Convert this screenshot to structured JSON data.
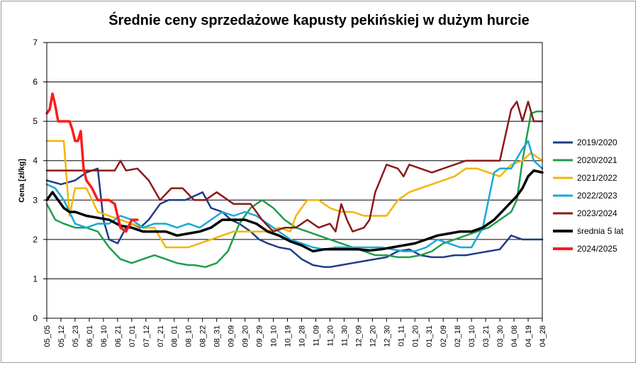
{
  "chart_data": {
    "type": "line",
    "title": "Średnie ceny sprzedażowe kapusty pekińskiej w dużym hurcie",
    "ylabel": "Cena [zł/kg]",
    "xlabel": "",
    "ylim": [
      0,
      7
    ],
    "yticks": [
      0,
      1,
      2,
      3,
      4,
      5,
      6,
      7
    ],
    "grid": "horizontal",
    "legend_position": "right",
    "x_tick_labels": [
      "05_05",
      "05_12",
      "05_23",
      "06_01",
      "06_10",
      "06_21",
      "07_01",
      "07_12",
      "07_21",
      "08_01",
      "08_10",
      "08_22",
      "08_31",
      "09_09",
      "09_20",
      "09_29",
      "10_10",
      "10_19",
      "10_28",
      "11_09",
      "11_20",
      "11_30",
      "12_09",
      "12_20",
      "12_30",
      "01_11",
      "01_20",
      "01_31",
      "02_09",
      "02_18",
      "03_10",
      "03_21",
      "03_30",
      "04_08",
      "04_19",
      "04_28"
    ],
    "x_range": [
      0,
      175
    ],
    "series": [
      {
        "name": "2019/2020",
        "color": "#1f3c88",
        "x": [
          0,
          5,
          10,
          14,
          18,
          20,
          22,
          25,
          28,
          30,
          33,
          36,
          40,
          43,
          46,
          49,
          52,
          55,
          58,
          62,
          65,
          68,
          72,
          75,
          78,
          82,
          86,
          90,
          94,
          98,
          100,
          104,
          108,
          112,
          116,
          120,
          124,
          128,
          132,
          136,
          140,
          144,
          148,
          152,
          156,
          160,
          164,
          168,
          172,
          175
        ],
        "y": [
          3.5,
          3.4,
          3.5,
          3.7,
          3.8,
          2.5,
          2.0,
          1.9,
          2.3,
          2.4,
          2.3,
          2.5,
          2.9,
          3.0,
          3.0,
          3.0,
          3.1,
          3.2,
          2.8,
          2.7,
          2.5,
          2.4,
          2.2,
          2.0,
          1.9,
          1.8,
          1.75,
          1.5,
          1.35,
          1.3,
          1.3,
          1.35,
          1.4,
          1.45,
          1.5,
          1.55,
          1.7,
          1.75,
          1.6,
          1.55,
          1.55,
          1.6,
          1.6,
          1.65,
          1.7,
          1.75,
          2.1,
          2.0,
          2.0,
          2.0
        ]
      },
      {
        "name": "2020/2021",
        "color": "#1e9e4a",
        "x": [
          0,
          3,
          6,
          10,
          14,
          18,
          22,
          26,
          30,
          34,
          38,
          42,
          46,
          50,
          52,
          56,
          60,
          64,
          68,
          72,
          76,
          80,
          84,
          88,
          92,
          96,
          100,
          104,
          108,
          112,
          116,
          120,
          124,
          128,
          132,
          136,
          140,
          144,
          148,
          152,
          156,
          160,
          164,
          166,
          168,
          171,
          173,
          175
        ],
        "y": [
          2.9,
          2.5,
          2.4,
          2.3,
          2.3,
          2.2,
          1.8,
          1.5,
          1.4,
          1.5,
          1.6,
          1.5,
          1.4,
          1.35,
          1.35,
          1.3,
          1.4,
          1.7,
          2.4,
          2.8,
          3.0,
          2.8,
          2.5,
          2.3,
          2.2,
          2.1,
          2.0,
          1.9,
          1.8,
          1.7,
          1.6,
          1.6,
          1.55,
          1.55,
          1.6,
          1.7,
          1.9,
          2.0,
          2.1,
          2.2,
          2.3,
          2.5,
          2.7,
          3.0,
          4.0,
          5.2,
          5.25,
          5.25
        ]
      },
      {
        "name": "2021/2022",
        "color": "#f5b400",
        "x": [
          0,
          3,
          6,
          8,
          10,
          14,
          18,
          22,
          26,
          30,
          34,
          38,
          42,
          46,
          50,
          54,
          58,
          62,
          66,
          70,
          74,
          78,
          82,
          86,
          88,
          92,
          96,
          100,
          104,
          108,
          112,
          116,
          120,
          124,
          128,
          132,
          136,
          140,
          144,
          148,
          152,
          156,
          160,
          164,
          168,
          171,
          173,
          175
        ],
        "y": [
          4.5,
          4.5,
          4.5,
          2.6,
          3.3,
          3.3,
          2.7,
          2.6,
          2.5,
          2.4,
          2.3,
          2.3,
          1.8,
          1.8,
          1.8,
          1.9,
          2.0,
          2.1,
          2.2,
          2.2,
          2.2,
          2.2,
          2.3,
          2.2,
          2.6,
          3.0,
          3.0,
          2.8,
          2.7,
          2.7,
          2.6,
          2.6,
          2.6,
          3.0,
          3.2,
          3.3,
          3.4,
          3.5,
          3.6,
          3.8,
          3.8,
          3.7,
          3.6,
          3.9,
          4.0,
          4.2,
          4.1,
          4.0
        ]
      },
      {
        "name": "2022/2023",
        "color": "#17a8d8",
        "x": [
          0,
          3,
          6,
          10,
          14,
          18,
          22,
          26,
          30,
          34,
          38,
          42,
          46,
          50,
          54,
          58,
          62,
          66,
          70,
          74,
          78,
          82,
          86,
          90,
          94,
          98,
          102,
          106,
          110,
          114,
          118,
          122,
          126,
          130,
          134,
          138,
          142,
          146,
          150,
          154,
          156,
          158,
          160,
          164,
          168,
          170,
          172,
          175
        ],
        "y": [
          3.4,
          3.3,
          3.0,
          2.4,
          2.3,
          2.4,
          2.4,
          2.6,
          2.5,
          2.3,
          2.4,
          2.4,
          2.3,
          2.4,
          2.3,
          2.5,
          2.7,
          2.6,
          2.7,
          2.6,
          2.4,
          2.2,
          2.0,
          1.9,
          1.8,
          1.75,
          1.8,
          1.8,
          1.8,
          1.8,
          1.8,
          1.75,
          1.7,
          1.7,
          1.8,
          2.0,
          1.9,
          1.8,
          1.8,
          2.3,
          3.0,
          3.7,
          3.8,
          3.8,
          4.3,
          4.5,
          4.0,
          3.8
        ]
      },
      {
        "name": "2023/2024",
        "color": "#8b1a1a",
        "x": [
          0,
          4,
          8,
          12,
          16,
          20,
          24,
          26,
          28,
          32,
          36,
          40,
          44,
          48,
          52,
          56,
          60,
          62,
          64,
          66,
          68,
          72,
          76,
          80,
          84,
          88,
          92,
          96,
          100,
          102,
          104,
          106,
          108,
          112,
          114,
          116,
          120,
          124,
          126,
          128,
          132,
          136,
          140,
          144,
          148,
          152,
          156,
          160,
          164,
          166,
          168,
          170,
          172,
          175
        ],
        "y": [
          3.75,
          3.75,
          3.75,
          3.75,
          3.75,
          3.75,
          3.75,
          4.0,
          3.75,
          3.8,
          3.5,
          3.0,
          3.3,
          3.3,
          3.0,
          3.0,
          3.2,
          3.1,
          3.0,
          2.9,
          2.9,
          2.9,
          2.5,
          2.2,
          2.3,
          2.3,
          2.5,
          2.3,
          2.4,
          2.2,
          2.9,
          2.5,
          2.2,
          2.3,
          2.5,
          3.2,
          3.9,
          3.8,
          3.6,
          3.9,
          3.8,
          3.7,
          3.8,
          3.9,
          4.0,
          4.0,
          4.0,
          4.0,
          5.3,
          5.5,
          5.0,
          5.5,
          5.0,
          5.0
        ]
      },
      {
        "name": "średnia 5 lat",
        "color": "#000000",
        "x": [
          0,
          2,
          4,
          6,
          8,
          10,
          14,
          18,
          22,
          26,
          30,
          34,
          38,
          42,
          46,
          50,
          54,
          58,
          62,
          66,
          70,
          74,
          78,
          82,
          86,
          90,
          94,
          98,
          102,
          106,
          110,
          114,
          118,
          122,
          126,
          130,
          134,
          138,
          142,
          146,
          150,
          154,
          158,
          162,
          166,
          168,
          170,
          172,
          175
        ],
        "y": [
          3.0,
          3.2,
          3.0,
          2.8,
          2.7,
          2.7,
          2.6,
          2.55,
          2.5,
          2.35,
          2.3,
          2.2,
          2.2,
          2.2,
          2.1,
          2.15,
          2.2,
          2.3,
          2.5,
          2.5,
          2.5,
          2.4,
          2.2,
          2.1,
          1.95,
          1.85,
          1.7,
          1.75,
          1.75,
          1.75,
          1.75,
          1.72,
          1.75,
          1.8,
          1.85,
          1.9,
          2.0,
          2.1,
          2.15,
          2.2,
          2.2,
          2.3,
          2.5,
          2.8,
          3.1,
          3.3,
          3.6,
          3.75,
          3.7
        ]
      },
      {
        "name": "2024/2025",
        "color": "#ff1a1a",
        "x": [
          0,
          1,
          2,
          3,
          4,
          5,
          6,
          8,
          9,
          10,
          11,
          12,
          13,
          14,
          16,
          18,
          20,
          22,
          24,
          26,
          28,
          30,
          32
        ],
        "y": [
          5.2,
          5.3,
          5.7,
          5.4,
          5.0,
          5.0,
          5.0,
          5.0,
          4.8,
          4.5,
          4.5,
          4.75,
          3.8,
          3.5,
          3.3,
          3.0,
          3.0,
          3.0,
          2.9,
          2.3,
          2.2,
          2.5,
          2.5
        ]
      }
    ]
  }
}
